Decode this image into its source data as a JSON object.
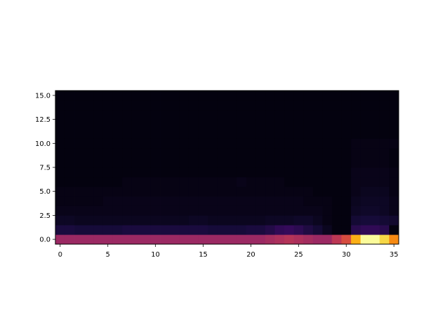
{
  "chart_data": {
    "type": "heatmap",
    "colormap": "inferno",
    "value_range": [
      0,
      1
    ],
    "xlim": [
      -0.5,
      35.5
    ],
    "ylim": [
      -0.5,
      15.5
    ],
    "x_ticks": [
      0,
      5,
      10,
      15,
      20,
      25,
      30,
      35
    ],
    "y_ticks": [
      0.0,
      2.5,
      5.0,
      7.5,
      10.0,
      12.5,
      15.0
    ],
    "x_tick_labels": [
      "0",
      "5",
      "10",
      "15",
      "20",
      "25",
      "30",
      "35"
    ],
    "y_tick_labels": [
      "0.0",
      "2.5",
      "5.0",
      "7.5",
      "10.0",
      "12.5",
      "15.0"
    ],
    "rows": [
      [
        0.42,
        0.42,
        0.42,
        0.42,
        0.42,
        0.42,
        0.42,
        0.42,
        0.42,
        0.42,
        0.42,
        0.42,
        0.42,
        0.42,
        0.42,
        0.42,
        0.42,
        0.42,
        0.42,
        0.42,
        0.42,
        0.42,
        0.44,
        0.46,
        0.48,
        0.46,
        0.44,
        0.42,
        0.42,
        0.5,
        0.58,
        0.82,
        0.99,
        0.99,
        0.9,
        0.74
      ],
      [
        0.11,
        0.11,
        0.1,
        0.1,
        0.1,
        0.1,
        0.1,
        0.11,
        0.11,
        0.11,
        0.11,
        0.11,
        0.11,
        0.11,
        0.11,
        0.11,
        0.1,
        0.1,
        0.1,
        0.1,
        0.11,
        0.11,
        0.13,
        0.16,
        0.17,
        0.15,
        0.12,
        0.09,
        0.05,
        0.02,
        0.02,
        0.14,
        0.16,
        0.16,
        0.14,
        0.02
      ],
      [
        0.06,
        0.06,
        0.05,
        0.05,
        0.05,
        0.05,
        0.05,
        0.05,
        0.05,
        0.05,
        0.05,
        0.05,
        0.05,
        0.05,
        0.06,
        0.06,
        0.05,
        0.05,
        0.05,
        0.05,
        0.05,
        0.05,
        0.06,
        0.06,
        0.06,
        0.07,
        0.07,
        0.05,
        0.03,
        0.02,
        0.02,
        0.09,
        0.1,
        0.1,
        0.09,
        0.08
      ],
      [
        0.04,
        0.04,
        0.04,
        0.04,
        0.04,
        0.04,
        0.04,
        0.04,
        0.04,
        0.04,
        0.04,
        0.04,
        0.04,
        0.04,
        0.04,
        0.04,
        0.04,
        0.04,
        0.04,
        0.04,
        0.04,
        0.04,
        0.04,
        0.04,
        0.04,
        0.04,
        0.04,
        0.04,
        0.03,
        0.02,
        0.02,
        0.06,
        0.07,
        0.07,
        0.06,
        0.04
      ],
      [
        0.03,
        0.03,
        0.03,
        0.03,
        0.03,
        0.04,
        0.04,
        0.04,
        0.04,
        0.04,
        0.04,
        0.04,
        0.04,
        0.04,
        0.04,
        0.04,
        0.04,
        0.04,
        0.04,
        0.04,
        0.04,
        0.04,
        0.04,
        0.04,
        0.04,
        0.04,
        0.03,
        0.03,
        0.03,
        0.02,
        0.02,
        0.05,
        0.06,
        0.06,
        0.06,
        0.04
      ],
      [
        0.03,
        0.03,
        0.03,
        0.03,
        0.03,
        0.03,
        0.03,
        0.03,
        0.03,
        0.03,
        0.03,
        0.03,
        0.03,
        0.03,
        0.03,
        0.03,
        0.03,
        0.03,
        0.03,
        0.03,
        0.03,
        0.03,
        0.03,
        0.03,
        0.03,
        0.03,
        0.03,
        0.02,
        0.02,
        0.02,
        0.02,
        0.04,
        0.05,
        0.05,
        0.05,
        0.03
      ],
      [
        0.02,
        0.02,
        0.02,
        0.02,
        0.02,
        0.02,
        0.02,
        0.03,
        0.03,
        0.03,
        0.03,
        0.03,
        0.03,
        0.03,
        0.03,
        0.03,
        0.03,
        0.03,
        0.03,
        0.04,
        0.03,
        0.03,
        0.03,
        0.03,
        0.02,
        0.02,
        0.02,
        0.02,
        0.02,
        0.02,
        0.02,
        0.04,
        0.04,
        0.04,
        0.04,
        0.03
      ],
      [
        0.02,
        0.02,
        0.02,
        0.02,
        0.02,
        0.02,
        0.02,
        0.02,
        0.02,
        0.02,
        0.02,
        0.02,
        0.02,
        0.02,
        0.02,
        0.02,
        0.02,
        0.02,
        0.02,
        0.02,
        0.02,
        0.02,
        0.02,
        0.02,
        0.02,
        0.02,
        0.02,
        0.02,
        0.02,
        0.02,
        0.02,
        0.04,
        0.04,
        0.04,
        0.04,
        0.03
      ],
      [
        0.02,
        0.02,
        0.02,
        0.02,
        0.02,
        0.02,
        0.02,
        0.02,
        0.02,
        0.02,
        0.02,
        0.02,
        0.02,
        0.02,
        0.02,
        0.02,
        0.02,
        0.02,
        0.02,
        0.02,
        0.02,
        0.02,
        0.02,
        0.02,
        0.02,
        0.02,
        0.02,
        0.02,
        0.02,
        0.02,
        0.02,
        0.03,
        0.03,
        0.03,
        0.03,
        0.02
      ],
      [
        0.02,
        0.02,
        0.02,
        0.02,
        0.02,
        0.02,
        0.02,
        0.02,
        0.02,
        0.02,
        0.02,
        0.02,
        0.02,
        0.02,
        0.02,
        0.02,
        0.02,
        0.02,
        0.02,
        0.02,
        0.02,
        0.02,
        0.02,
        0.02,
        0.02,
        0.02,
        0.02,
        0.02,
        0.02,
        0.02,
        0.02,
        0.03,
        0.03,
        0.03,
        0.03,
        0.02
      ],
      [
        0.02,
        0.02,
        0.02,
        0.02,
        0.02,
        0.02,
        0.02,
        0.02,
        0.02,
        0.02,
        0.02,
        0.02,
        0.02,
        0.02,
        0.02,
        0.02,
        0.02,
        0.02,
        0.02,
        0.02,
        0.02,
        0.02,
        0.02,
        0.02,
        0.02,
        0.02,
        0.02,
        0.02,
        0.02,
        0.02,
        0.02,
        0.03,
        0.03,
        0.03,
        0.03,
        0.03
      ],
      [
        0.02,
        0.02,
        0.02,
        0.02,
        0.02,
        0.02,
        0.02,
        0.02,
        0.02,
        0.02,
        0.02,
        0.02,
        0.02,
        0.02,
        0.02,
        0.02,
        0.02,
        0.02,
        0.02,
        0.02,
        0.02,
        0.02,
        0.02,
        0.02,
        0.02,
        0.02,
        0.02,
        0.02,
        0.02,
        0.02,
        0.02,
        0.02,
        0.02,
        0.02,
        0.02,
        0.02
      ],
      [
        0.02,
        0.02,
        0.02,
        0.02,
        0.02,
        0.02,
        0.02,
        0.02,
        0.02,
        0.02,
        0.02,
        0.02,
        0.02,
        0.02,
        0.02,
        0.02,
        0.02,
        0.02,
        0.02,
        0.02,
        0.02,
        0.02,
        0.02,
        0.02,
        0.02,
        0.02,
        0.02,
        0.02,
        0.02,
        0.02,
        0.02,
        0.02,
        0.02,
        0.02,
        0.02,
        0.02
      ],
      [
        0.02,
        0.02,
        0.02,
        0.02,
        0.02,
        0.02,
        0.02,
        0.02,
        0.02,
        0.02,
        0.02,
        0.02,
        0.02,
        0.02,
        0.02,
        0.02,
        0.02,
        0.02,
        0.02,
        0.02,
        0.02,
        0.02,
        0.02,
        0.02,
        0.02,
        0.02,
        0.02,
        0.02,
        0.02,
        0.02,
        0.02,
        0.02,
        0.02,
        0.02,
        0.02,
        0.02
      ],
      [
        0.02,
        0.02,
        0.02,
        0.02,
        0.02,
        0.02,
        0.02,
        0.02,
        0.02,
        0.02,
        0.02,
        0.02,
        0.02,
        0.02,
        0.02,
        0.02,
        0.02,
        0.02,
        0.02,
        0.02,
        0.02,
        0.02,
        0.02,
        0.02,
        0.02,
        0.02,
        0.02,
        0.02,
        0.02,
        0.02,
        0.02,
        0.02,
        0.02,
        0.02,
        0.02,
        0.02
      ],
      [
        0.02,
        0.02,
        0.02,
        0.02,
        0.02,
        0.02,
        0.02,
        0.02,
        0.02,
        0.02,
        0.02,
        0.02,
        0.02,
        0.02,
        0.02,
        0.02,
        0.02,
        0.02,
        0.02,
        0.02,
        0.02,
        0.02,
        0.02,
        0.02,
        0.02,
        0.02,
        0.02,
        0.02,
        0.02,
        0.02,
        0.02,
        0.02,
        0.02,
        0.02,
        0.02,
        0.02
      ]
    ]
  }
}
